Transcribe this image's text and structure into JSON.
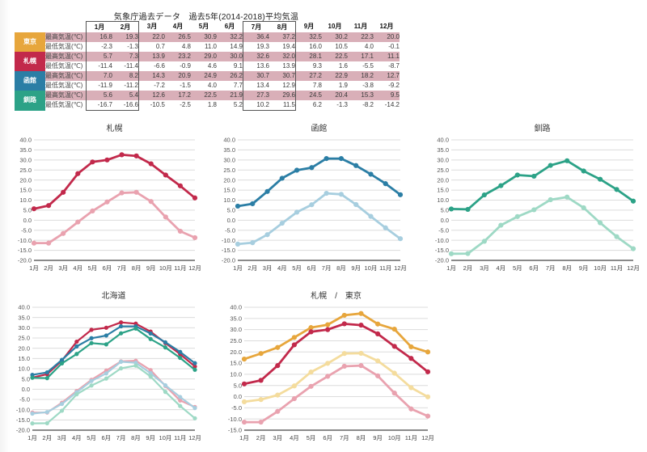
{
  "page": {
    "title": "気象庁過去データ　過去5年(2014-2018)平均気温",
    "background": "#ffffff"
  },
  "table": {
    "months": [
      "1月",
      "2月",
      "3月",
      "4月",
      "5月",
      "6月",
      "7月",
      "8月",
      "9月",
      "10月",
      "11月",
      "12月"
    ],
    "row_labels": {
      "max": "最高気温(℃)",
      "min": "最低気温(℃)"
    },
    "max_row_bg": "#D9AFB8",
    "box_border_color": "#555555",
    "highlight_boxes_month_indexes": [
      [
        0,
        1
      ],
      [
        6,
        7
      ]
    ],
    "cities": [
      {
        "name": "東京",
        "color": "#E7A63C",
        "max": [
          "16.8",
          "19.3",
          "22.0",
          "26.5",
          "30.9",
          "32.2",
          "36.4",
          "37.2",
          "32.5",
          "30.2",
          "22.3",
          "20.0"
        ],
        "min": [
          "-2.3",
          "-1.3",
          "0.7",
          "4.8",
          "11.0",
          "14.9",
          "19.3",
          "19.4",
          "16.0",
          "10.5",
          "4.0",
          "-0.1"
        ]
      },
      {
        "name": "札幌",
        "color": "#C2294B",
        "max": [
          "5.7",
          "7.3",
          "13.9",
          "23.2",
          "29.0",
          "30.0",
          "32.6",
          "32.0",
          "28.1",
          "22.5",
          "17.1",
          "11.1"
        ],
        "min": [
          "-11.4",
          "-11.4",
          "-6.6",
          "-0.9",
          "4.6",
          "9.1",
          "13.6",
          "13.9",
          "9.3",
          "1.6",
          "-5.5",
          "-8.7"
        ]
      },
      {
        "name": "函館",
        "color": "#2B7EA5",
        "max": [
          "7.0",
          "8.2",
          "14.3",
          "20.9",
          "24.9",
          "26.2",
          "30.7",
          "30.7",
          "27.2",
          "22.9",
          "18.2",
          "12.7"
        ],
        "min": [
          "-11.9",
          "-11.2",
          "-7.2",
          "-1.5",
          "4.0",
          "7.7",
          "13.4",
          "12.9",
          "7.8",
          "1.9",
          "-3.8",
          "-9.2"
        ]
      },
      {
        "name": "釧路",
        "color": "#2CA287",
        "max": [
          "5.6",
          "5.4",
          "12.6",
          "17.2",
          "22.5",
          "21.9",
          "27.3",
          "29.6",
          "24.5",
          "20.4",
          "15.3",
          "9.5"
        ],
        "min": [
          "-16.7",
          "-16.6",
          "-10.5",
          "-2.5",
          "1.8",
          "5.2",
          "10.2",
          "11.5",
          "6.2",
          "-1.3",
          "-8.2",
          "-14.2"
        ]
      }
    ]
  },
  "chart_data": [
    {
      "type": "line",
      "title": "札幌",
      "x": [
        "1月",
        "2月",
        "3月",
        "4月",
        "5月",
        "6月",
        "7月",
        "8月",
        "9月",
        "10月",
        "11月",
        "12月"
      ],
      "ylim": [
        -20,
        40
      ],
      "ytick": 5,
      "grid": true,
      "legend": "none",
      "series": [
        {
          "name": "札幌 最高気温",
          "color": "#C2294B",
          "values": [
            5.7,
            7.3,
            13.9,
            23.2,
            29.0,
            30.0,
            32.6,
            32.0,
            28.1,
            22.5,
            17.1,
            11.1
          ]
        },
        {
          "name": "札幌 最低気温",
          "color": "#E9A2AF",
          "values": [
            -11.4,
            -11.4,
            -6.6,
            -0.9,
            4.6,
            9.1,
            13.6,
            13.9,
            9.3,
            1.6,
            -5.5,
            -8.7
          ]
        }
      ]
    },
    {
      "type": "line",
      "title": "函館",
      "x": [
        "1月",
        "2月",
        "3月",
        "4月",
        "5月",
        "6月",
        "7月",
        "8月",
        "9月",
        "10月",
        "11月",
        "12月"
      ],
      "ylim": [
        -20,
        40
      ],
      "ytick": 5,
      "grid": true,
      "legend": "none",
      "series": [
        {
          "name": "函館 最高気温",
          "color": "#2B7EA5",
          "values": [
            7.0,
            8.2,
            14.3,
            20.9,
            24.9,
            26.2,
            30.7,
            30.7,
            27.2,
            22.9,
            18.2,
            12.7
          ]
        },
        {
          "name": "函館 最低気温",
          "color": "#A7CEDF",
          "values": [
            -11.9,
            -11.2,
            -7.2,
            -1.5,
            4.0,
            7.7,
            13.4,
            12.9,
            7.8,
            1.9,
            -3.8,
            -9.2
          ]
        }
      ]
    },
    {
      "type": "line",
      "title": "釧路",
      "x": [
        "1月",
        "2月",
        "3月",
        "4月",
        "5月",
        "6月",
        "7月",
        "8月",
        "9月",
        "10月",
        "11月",
        "12月"
      ],
      "ylim": [
        -20,
        40
      ],
      "ytick": 5,
      "grid": true,
      "legend": "none",
      "series": [
        {
          "name": "釧路 最高気温",
          "color": "#2CA287",
          "values": [
            5.6,
            5.4,
            12.6,
            17.2,
            22.5,
            21.9,
            27.3,
            29.6,
            24.5,
            20.4,
            15.3,
            9.5
          ]
        },
        {
          "name": "釧路 最低気温",
          "color": "#9ED9C5",
          "values": [
            -16.7,
            -16.6,
            -10.5,
            -2.5,
            1.8,
            5.2,
            10.2,
            11.5,
            6.2,
            -1.3,
            -8.2,
            -14.2
          ]
        }
      ]
    },
    {
      "type": "line",
      "title": "北海道",
      "x": [
        "1月",
        "2月",
        "3月",
        "4月",
        "5月",
        "6月",
        "7月",
        "8月",
        "9月",
        "10月",
        "11月",
        "12月"
      ],
      "ylim": [
        -20,
        40
      ],
      "ytick": 5,
      "grid": true,
      "legend": "none",
      "series": [
        {
          "name": "札幌 最高気温",
          "color": "#C2294B",
          "values": [
            5.7,
            7.3,
            13.9,
            23.2,
            29.0,
            30.0,
            32.6,
            32.0,
            28.1,
            22.5,
            17.1,
            11.1
          ]
        },
        {
          "name": "函館 最高気温",
          "color": "#2B7EA5",
          "values": [
            7.0,
            8.2,
            14.3,
            20.9,
            24.9,
            26.2,
            30.7,
            30.7,
            27.2,
            22.9,
            18.2,
            12.7
          ]
        },
        {
          "name": "釧路 最高気温",
          "color": "#2CA287",
          "values": [
            5.6,
            5.4,
            12.6,
            17.2,
            22.5,
            21.9,
            27.3,
            29.6,
            24.5,
            20.4,
            15.3,
            9.5
          ]
        },
        {
          "name": "札幌 最低気温",
          "color": "#E9A2AF",
          "values": [
            -11.4,
            -11.4,
            -6.6,
            -0.9,
            4.6,
            9.1,
            13.6,
            13.9,
            9.3,
            1.6,
            -5.5,
            -8.7
          ]
        },
        {
          "name": "函館 最低気温",
          "color": "#A7CEDF",
          "values": [
            -11.9,
            -11.2,
            -7.2,
            -1.5,
            4.0,
            7.7,
            13.4,
            12.9,
            7.8,
            1.9,
            -3.8,
            -9.2
          ]
        },
        {
          "name": "釧路 最低気温",
          "color": "#9ED9C5",
          "values": [
            -16.7,
            -16.6,
            -10.5,
            -2.5,
            1.8,
            5.2,
            10.2,
            11.5,
            6.2,
            -1.3,
            -8.2,
            -14.2
          ]
        }
      ]
    },
    {
      "type": "line",
      "title": "札幌　/　東京",
      "x": [
        "1月",
        "2月",
        "3月",
        "4月",
        "5月",
        "6月",
        "7月",
        "8月",
        "9月",
        "10月",
        "11月",
        "12月"
      ],
      "ylim": [
        -15,
        40
      ],
      "ytick": 5,
      "grid": true,
      "legend": "none",
      "series": [
        {
          "name": "東京 最高気温",
          "color": "#E7A63C",
          "values": [
            16.8,
            19.3,
            22.0,
            26.5,
            30.9,
            32.2,
            36.4,
            37.2,
            32.5,
            30.2,
            22.3,
            20.0
          ]
        },
        {
          "name": "札幌 最高気温",
          "color": "#C2294B",
          "values": [
            5.7,
            7.3,
            13.9,
            23.2,
            29.0,
            30.0,
            32.6,
            32.0,
            28.1,
            22.5,
            17.1,
            11.1
          ]
        },
        {
          "name": "東京 最低気温",
          "color": "#F4DC9D",
          "values": [
            -2.3,
            -1.3,
            0.7,
            4.8,
            11.0,
            14.9,
            19.3,
            19.4,
            16.0,
            10.5,
            4.0,
            -0.1
          ]
        },
        {
          "name": "札幌 最低気温",
          "color": "#E9A2AF",
          "values": [
            -11.4,
            -11.4,
            -6.6,
            -0.9,
            4.6,
            9.1,
            13.6,
            13.9,
            9.3,
            1.6,
            -5.5,
            -8.7
          ]
        }
      ]
    }
  ]
}
